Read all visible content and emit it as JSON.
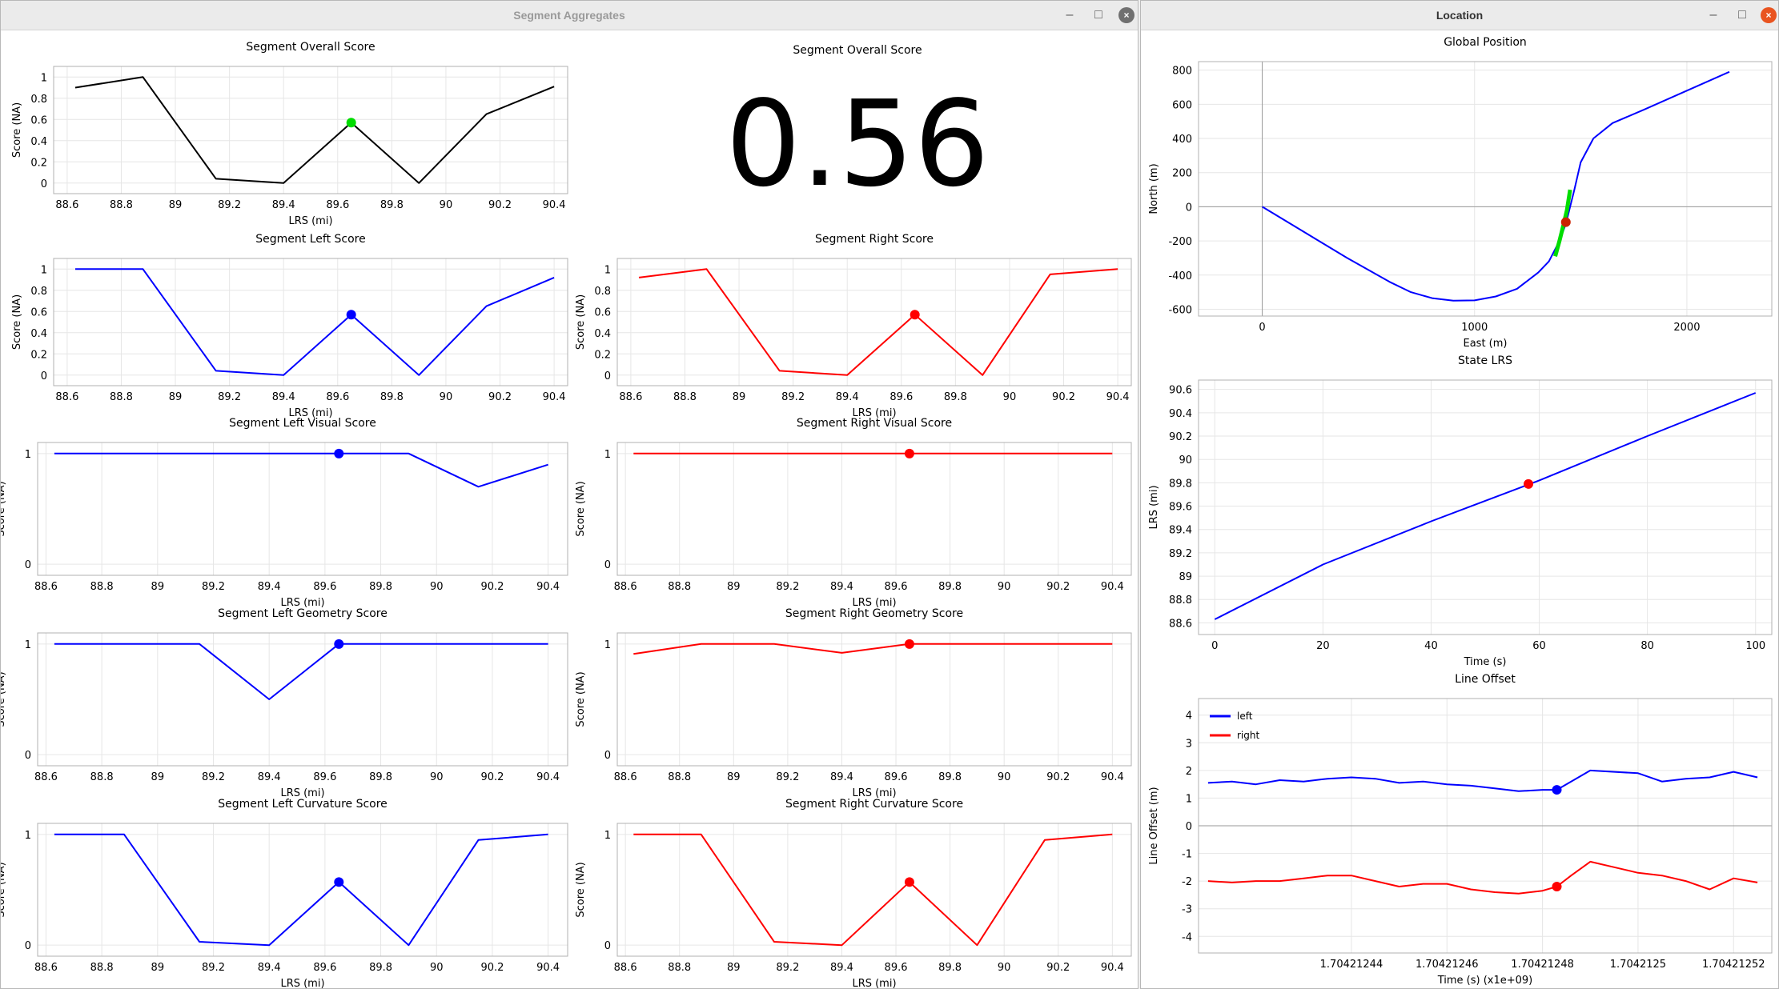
{
  "windows": {
    "segment": {
      "title": "Segment Aggregates"
    },
    "location": {
      "title": "Location"
    }
  },
  "controls": {
    "minimize": "–",
    "maximize": "□",
    "close": "×"
  },
  "colors": {
    "black": "#000000",
    "blue": "#0000ff",
    "red": "#ff0000",
    "green": "#00dd00",
    "grid": "#e6e6e6",
    "axis": "#808080"
  },
  "overall_score": {
    "title": "Segment Overall Score",
    "value": "0.56"
  },
  "chart_data": [
    {
      "id": "overall",
      "type": "line",
      "title": "Segment Overall Score",
      "xlabel": "LRS (mi)",
      "ylabel": "Score (NA)",
      "xlim": [
        88.55,
        90.45
      ],
      "ylim": [
        -0.1,
        1.1
      ],
      "xticks": [
        "88.6",
        "88.8",
        "89",
        "89.2",
        "89.4",
        "89.6",
        "89.8",
        "90",
        "90.2",
        "90.4"
      ],
      "yticks": [
        "0",
        "0.2",
        "0.4",
        "0.6",
        "0.8",
        "1"
      ],
      "x": [
        88.63,
        88.88,
        89.15,
        89.4,
        89.65,
        89.9,
        90.15,
        90.4
      ],
      "series": [
        {
          "values": [
            0.9,
            1.0,
            0.04,
            0.0,
            0.57,
            0.0,
            0.65,
            0.91
          ],
          "color": "#000000"
        }
      ],
      "marker": {
        "x": 89.65,
        "y": 0.57,
        "color": "#00dd00"
      }
    },
    {
      "id": "left",
      "type": "line",
      "title": "Segment Left Score",
      "xlabel": "LRS (mi)",
      "ylabel": "Score (NA)",
      "xlim": [
        88.55,
        90.45
      ],
      "ylim": [
        -0.1,
        1.1
      ],
      "xticks": [
        "88.6",
        "88.8",
        "89",
        "89.2",
        "89.4",
        "89.6",
        "89.8",
        "90",
        "90.2",
        "90.4"
      ],
      "yticks": [
        "0",
        "0.2",
        "0.4",
        "0.6",
        "0.8",
        "1"
      ],
      "x": [
        88.63,
        88.88,
        89.15,
        89.4,
        89.65,
        89.9,
        90.15,
        90.4
      ],
      "series": [
        {
          "values": [
            1.0,
            1.0,
            0.04,
            0.0,
            0.57,
            0.0,
            0.65,
            0.92
          ],
          "color": "#0000ff"
        }
      ],
      "marker": {
        "x": 89.65,
        "y": 0.57,
        "color": "#0000ff"
      }
    },
    {
      "id": "right",
      "type": "line",
      "title": "Segment Right Score",
      "xlabel": "LRS (mi)",
      "ylabel": "Score (NA)",
      "xlim": [
        88.55,
        90.45
      ],
      "ylim": [
        -0.1,
        1.1
      ],
      "xticks": [
        "88.6",
        "88.8",
        "89",
        "89.2",
        "89.4",
        "89.6",
        "89.8",
        "90",
        "90.2",
        "90.4"
      ],
      "yticks": [
        "0",
        "0.2",
        "0.4",
        "0.6",
        "0.8",
        "1"
      ],
      "x": [
        88.63,
        88.88,
        89.15,
        89.4,
        89.65,
        89.9,
        90.15,
        90.4
      ],
      "series": [
        {
          "values": [
            0.92,
            1.0,
            0.04,
            0.0,
            0.57,
            0.0,
            0.95,
            1.0
          ],
          "color": "#ff0000"
        }
      ],
      "marker": {
        "x": 89.65,
        "y": 0.57,
        "color": "#ff0000"
      }
    },
    {
      "id": "left_visual",
      "type": "line",
      "title": "Segment Left Visual Score",
      "xlabel": "LRS (mi)",
      "ylabel": "Score (NA)",
      "xlim": [
        88.57,
        90.47
      ],
      "ylim": [
        -0.1,
        1.1
      ],
      "xticks": [
        "88.6",
        "88.8",
        "89",
        "89.2",
        "89.4",
        "89.6",
        "89.8",
        "90",
        "90.2",
        "90.4"
      ],
      "yticks": [
        "0",
        "1"
      ],
      "x": [
        88.63,
        88.88,
        89.15,
        89.4,
        89.65,
        89.9,
        90.15,
        90.4
      ],
      "series": [
        {
          "values": [
            1.0,
            1.0,
            1.0,
            1.0,
            1.0,
            1.0,
            0.7,
            0.9
          ],
          "color": "#0000ff"
        }
      ],
      "marker": {
        "x": 89.65,
        "y": 1.0,
        "color": "#0000ff"
      }
    },
    {
      "id": "right_visual",
      "type": "line",
      "title": "Segment Right Visual Score",
      "xlabel": "LRS (mi)",
      "ylabel": "Score (NA)",
      "xlim": [
        88.57,
        90.47
      ],
      "ylim": [
        -0.1,
        1.1
      ],
      "xticks": [
        "88.6",
        "88.8",
        "89",
        "89.2",
        "89.4",
        "89.6",
        "89.8",
        "90",
        "90.2",
        "90.4"
      ],
      "yticks": [
        "0",
        "1"
      ],
      "x": [
        88.63,
        88.88,
        89.15,
        89.4,
        89.65,
        89.9,
        90.15,
        90.4
      ],
      "series": [
        {
          "values": [
            1.0,
            1.0,
            1.0,
            1.0,
            1.0,
            1.0,
            1.0,
            1.0
          ],
          "color": "#ff0000"
        }
      ],
      "marker": {
        "x": 89.65,
        "y": 1.0,
        "color": "#ff0000"
      }
    },
    {
      "id": "left_geometry",
      "type": "line",
      "title": "Segment Left Geometry Score",
      "xlabel": "LRS (mi)",
      "ylabel": "Score (NA)",
      "xlim": [
        88.57,
        90.47
      ],
      "ylim": [
        -0.1,
        1.1
      ],
      "xticks": [
        "88.6",
        "88.8",
        "89",
        "89.2",
        "89.4",
        "89.6",
        "89.8",
        "90",
        "90.2",
        "90.4"
      ],
      "yticks": [
        "0",
        "1"
      ],
      "x": [
        88.63,
        88.88,
        89.15,
        89.4,
        89.65,
        89.9,
        90.15,
        90.4
      ],
      "series": [
        {
          "values": [
            1.0,
            1.0,
            1.0,
            0.5,
            1.0,
            1.0,
            1.0,
            1.0
          ],
          "color": "#0000ff"
        }
      ],
      "marker": {
        "x": 89.65,
        "y": 1.0,
        "color": "#0000ff"
      }
    },
    {
      "id": "right_geometry",
      "type": "line",
      "title": "Segment Right Geometry Score",
      "xlabel": "LRS (mi)",
      "ylabel": "Score (NA)",
      "xlim": [
        88.57,
        90.47
      ],
      "ylim": [
        -0.1,
        1.1
      ],
      "xticks": [
        "88.6",
        "88.8",
        "89",
        "89.2",
        "89.4",
        "89.6",
        "89.8",
        "90",
        "90.2",
        "90.4"
      ],
      "yticks": [
        "0",
        "1"
      ],
      "x": [
        88.63,
        88.88,
        89.15,
        89.4,
        89.65,
        89.9,
        90.15,
        90.4
      ],
      "series": [
        {
          "values": [
            0.91,
            1.0,
            1.0,
            0.92,
            1.0,
            1.0,
            1.0,
            1.0
          ],
          "color": "#ff0000"
        }
      ],
      "marker": {
        "x": 89.65,
        "y": 1.0,
        "color": "#ff0000"
      }
    },
    {
      "id": "left_curvature",
      "type": "line",
      "title": "Segment Left Curvature Score",
      "xlabel": "LRS (mi)",
      "ylabel": "Score (NA)",
      "xlim": [
        88.57,
        90.47
      ],
      "ylim": [
        -0.1,
        1.1
      ],
      "xticks": [
        "88.6",
        "88.8",
        "89",
        "89.2",
        "89.4",
        "89.6",
        "89.8",
        "90",
        "90.2",
        "90.4"
      ],
      "yticks": [
        "0",
        "1"
      ],
      "x": [
        88.63,
        88.88,
        89.15,
        89.4,
        89.65,
        89.9,
        90.15,
        90.4
      ],
      "series": [
        {
          "values": [
            1.0,
            1.0,
            0.03,
            0.0,
            0.57,
            0.0,
            0.95,
            1.0
          ],
          "color": "#0000ff"
        }
      ],
      "marker": {
        "x": 89.65,
        "y": 0.57,
        "color": "#0000ff"
      }
    },
    {
      "id": "right_curvature",
      "type": "line",
      "title": "Segment Right Curvature Score",
      "xlabel": "LRS (mi)",
      "ylabel": "Score (NA)",
      "xlim": [
        88.57,
        90.47
      ],
      "ylim": [
        -0.1,
        1.1
      ],
      "xticks": [
        "88.6",
        "88.8",
        "89",
        "89.2",
        "89.4",
        "89.6",
        "89.8",
        "90",
        "90.2",
        "90.4"
      ],
      "yticks": [
        "0",
        "1"
      ],
      "x": [
        88.63,
        88.88,
        89.15,
        89.4,
        89.65,
        89.9,
        90.15,
        90.4
      ],
      "series": [
        {
          "values": [
            1.0,
            1.0,
            0.03,
            0.0,
            0.57,
            0.0,
            0.95,
            1.0
          ],
          "color": "#ff0000"
        }
      ],
      "marker": {
        "x": 89.65,
        "y": 0.57,
        "color": "#ff0000"
      }
    },
    {
      "id": "global_position",
      "type": "line",
      "title": "Global Position",
      "xlabel": "East (m)",
      "ylabel": "North (m)",
      "xlim": [
        -300,
        2400
      ],
      "ylim": [
        -640,
        850
      ],
      "xticks": [
        "0",
        "1000",
        "2000"
      ],
      "xtick_values": [
        0,
        1000,
        2000
      ],
      "yticks": [
        "-600",
        "-400",
        "-200",
        "0",
        "200",
        "400",
        "600",
        "800"
      ],
      "ytick_values": [
        -600,
        -400,
        -200,
        0,
        200,
        400,
        600,
        800
      ],
      "series": [
        {
          "color": "#0000ff",
          "x": [
            0,
            200,
            400,
            600,
            700,
            800,
            900,
            1000,
            1100,
            1200,
            1300,
            1350,
            1400,
            1430,
            1450,
            1470,
            1500,
            1560,
            1650,
            1800,
            2000,
            2200
          ],
          "y": [
            0,
            -150,
            -300,
            -440,
            -500,
            -535,
            -550,
            -548,
            -525,
            -480,
            -385,
            -320,
            -200,
            -100,
            0,
            100,
            260,
            400,
            490,
            570,
            680,
            790
          ]
        },
        {
          "color": "#00dd00",
          "x": [
            1380,
            1400,
            1420,
            1435,
            1450
          ],
          "y": [
            -290,
            -200,
            -100,
            -20,
            100
          ]
        }
      ],
      "marker": {
        "x": 1430,
        "y": -90,
        "color": "#cc2200"
      }
    },
    {
      "id": "state_lrs",
      "type": "line",
      "title": "State LRS",
      "xlabel": "Time (s)",
      "ylabel": "LRS (mi)",
      "xlim": [
        -3,
        103
      ],
      "ylim": [
        88.5,
        90.68
      ],
      "xticks": [
        "0",
        "20",
        "40",
        "60",
        "80",
        "100"
      ],
      "xtick_values": [
        0,
        20,
        40,
        60,
        80,
        100
      ],
      "yticks": [
        "88.6",
        "88.8",
        "89",
        "89.2",
        "89.4",
        "89.6",
        "89.8",
        "90",
        "90.2",
        "90.4",
        "90.6"
      ],
      "ytick_values": [
        88.6,
        88.8,
        89.0,
        89.2,
        89.4,
        89.6,
        89.8,
        90.0,
        90.2,
        90.4,
        90.6
      ],
      "series": [
        {
          "color": "#0000ff",
          "x": [
            0,
            20,
            40,
            60,
            80,
            100
          ],
          "y": [
            88.63,
            89.1,
            89.47,
            89.82,
            90.2,
            90.57
          ]
        }
      ],
      "marker": {
        "x": 58,
        "y": 89.79,
        "color": "#ff0000"
      }
    },
    {
      "id": "line_offset",
      "type": "line",
      "title": "Line Offset",
      "xlabel": "Time (s) (x1e+09)",
      "ylabel": "Line Offset (m)",
      "xlim": [
        1.704212408,
        1.704212528
      ],
      "ylim": [
        -4.6,
        4.6
      ],
      "xticks": [
        "1.70421244",
        "1.70421246",
        "1.70421248",
        "1.7042125",
        "1.70421252"
      ],
      "xtick_values": [
        1.70421244,
        1.70421246,
        1.70421248,
        1.7042125,
        1.70421252
      ],
      "yticks": [
        "-4",
        "-3",
        "-2",
        "-1",
        "0",
        "1",
        "2",
        "3",
        "4"
      ],
      "ytick_values": [
        -4,
        -3,
        -2,
        -1,
        0,
        1,
        2,
        3,
        4
      ],
      "legend": {
        "placement": "top-left",
        "entries": [
          {
            "name": "left",
            "color": "#0000ff"
          },
          {
            "name": "right",
            "color": "#ff0000"
          }
        ]
      },
      "series": [
        {
          "name": "left",
          "color": "#0000ff",
          "x": [
            1.70421241,
            1.704212415,
            1.70421242,
            1.704212425,
            1.70421243,
            1.704212435,
            1.70421244,
            1.704212445,
            1.70421245,
            1.704212455,
            1.70421246,
            1.704212465,
            1.70421247,
            1.704212475,
            1.70421248,
            1.704212483,
            1.704212486,
            1.70421249,
            1.704212495,
            1.7042125,
            1.704212505,
            1.70421251,
            1.704212515,
            1.70421252,
            1.704212525
          ],
          "y": [
            1.55,
            1.6,
            1.5,
            1.65,
            1.6,
            1.7,
            1.75,
            1.7,
            1.55,
            1.6,
            1.5,
            1.45,
            1.35,
            1.25,
            1.3,
            1.3,
            1.6,
            2.0,
            1.95,
            1.9,
            1.6,
            1.7,
            1.75,
            1.95,
            1.75
          ]
        },
        {
          "name": "right",
          "color": "#ff0000",
          "x": [
            1.70421241,
            1.704212415,
            1.70421242,
            1.704212425,
            1.70421243,
            1.704212435,
            1.70421244,
            1.704212445,
            1.70421245,
            1.704212455,
            1.70421246,
            1.704212465,
            1.70421247,
            1.704212475,
            1.70421248,
            1.704212483,
            1.704212486,
            1.70421249,
            1.704212495,
            1.7042125,
            1.704212505,
            1.70421251,
            1.704212515,
            1.70421252,
            1.704212525
          ],
          "y": [
            -2.0,
            -2.05,
            -2.0,
            -2.0,
            -1.9,
            -1.8,
            -1.8,
            -2.0,
            -2.2,
            -2.1,
            -2.1,
            -2.3,
            -2.4,
            -2.45,
            -2.35,
            -2.2,
            -1.8,
            -1.3,
            -1.5,
            -1.7,
            -1.8,
            -2.0,
            -2.3,
            -1.9,
            -2.05
          ]
        }
      ],
      "marker": {
        "x": 1.704212483,
        "y_left": 1.3,
        "y_right": -2.2
      }
    }
  ]
}
